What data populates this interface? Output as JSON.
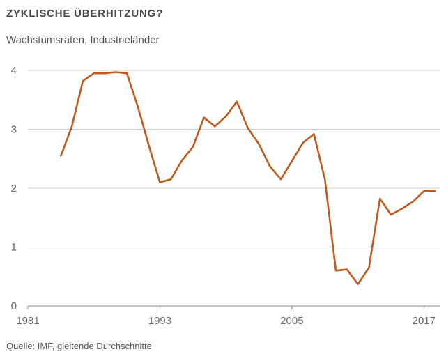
{
  "header": {
    "title": "ZYKLISCHE ÜBERHITZUNG?",
    "subtitle": "Wachstumsraten, Industrieländer"
  },
  "footer": {
    "source": "Quelle: IMF, gleitende Durchschnitte"
  },
  "colors": {
    "line": "#c0591c",
    "grid": "#cccccc",
    "axis": "#888888"
  },
  "chart_data": {
    "type": "line",
    "title": "ZYKLISCHE ÜBERHITZUNG?",
    "subtitle": "Wachstumsraten, Industrieländer",
    "xlim": [
      1981,
      2018.5
    ],
    "ylim": [
      0,
      4
    ],
    "x_ticks": [
      1981,
      1993,
      2005,
      2017
    ],
    "y_ticks": [
      0,
      1,
      2,
      3,
      4
    ],
    "grid": "horizontal",
    "series": [
      {
        "x": [
          1984,
          1985,
          1986,
          1987,
          1988,
          1989,
          1990,
          1991,
          1992,
          1993,
          1994,
          1995,
          1996,
          1997,
          1998,
          1999,
          2000,
          2001,
          2002,
          2003,
          2004,
          2005,
          2006,
          2007,
          2008,
          2009,
          2010,
          2011,
          2012,
          2013,
          2014,
          2015,
          2016,
          2017,
          2018
        ],
        "y": [
          2.55,
          3.05,
          3.82,
          3.95,
          3.95,
          3.97,
          3.95,
          3.38,
          2.72,
          2.1,
          2.15,
          2.47,
          2.7,
          3.2,
          3.05,
          3.22,
          3.47,
          3.02,
          2.75,
          2.37,
          2.15,
          2.46,
          2.77,
          2.92,
          2.15,
          0.6,
          0.62,
          0.37,
          0.65,
          1.82,
          1.55,
          1.65,
          1.77,
          1.95,
          1.95
        ]
      }
    ]
  }
}
